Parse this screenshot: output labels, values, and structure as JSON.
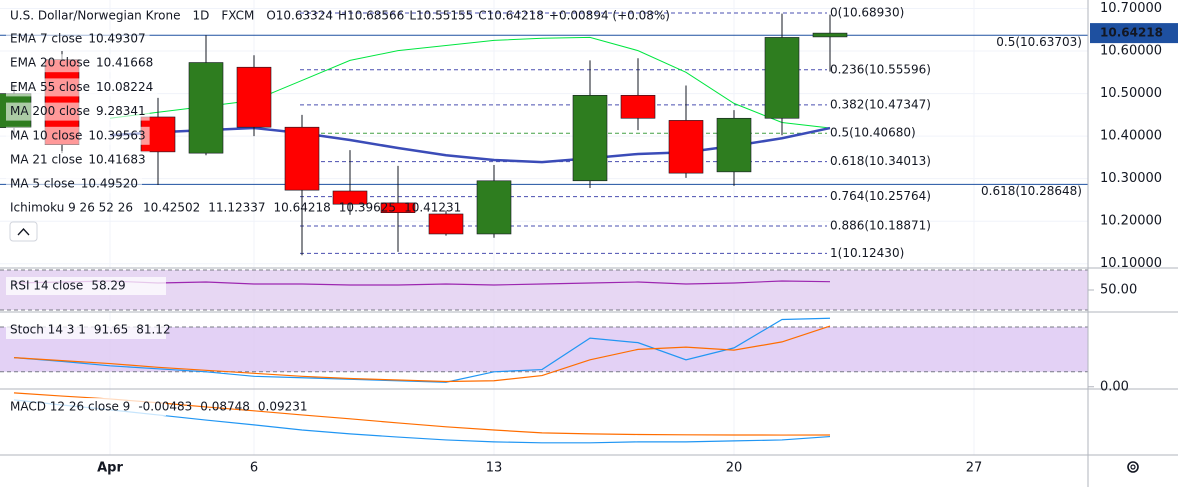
{
  "header": {
    "title": "U.S. Dollar/Norwegian Krone",
    "interval": "1D",
    "source": "FXCM",
    "ohlc": [
      "O10.63324",
      "H10.68566",
      "L10.55155",
      "C10.64218",
      "+0.00894 (+0.08%)"
    ]
  },
  "legend": [
    {
      "name": "EMA 7 close",
      "value": "10.49307",
      "color": "#2962ff"
    },
    {
      "name": "EMA 20 close",
      "value": "10.41668",
      "color": "#2962ff"
    },
    {
      "name": "EMA 55 close",
      "value": "10.08224",
      "color": "#ff9800"
    },
    {
      "name": "MA 200 close",
      "value": "9.28341",
      "color": "#e53935"
    },
    {
      "name": "MA 10 close",
      "value": "10.39563",
      "color": "#43a047"
    },
    {
      "name": "MA 21 close",
      "value": "10.41683",
      "color": "#4caf50"
    },
    {
      "name": "MA 5 close",
      "value": "10.49520",
      "color": "#2962ff"
    }
  ],
  "ichimoku": {
    "name": "Ichimoku 9 26 52 26",
    "values": [
      {
        "value": "10.42502",
        "color": "#2962ff"
      },
      {
        "value": "11.12337",
        "color": "#880e4f"
      },
      {
        "value": "10.64218",
        "color": "#43a047"
      },
      {
        "value": "10.39625",
        "color": "#ef9a9a"
      },
      {
        "value": "10.41231",
        "color": "#e53935"
      }
    ]
  },
  "chart_data": [
    {
      "type": "candlestick",
      "categories": [
        null,
        null,
        "Apr",
        null,
        null,
        "6",
        null,
        null,
        null,
        null,
        "13",
        null,
        null,
        null,
        null,
        "20",
        null,
        null,
        null,
        null,
        "27",
        null
      ],
      "open": [
        10.42,
        10.58,
        null,
        10.445,
        10.36,
        10.562,
        10.421,
        10.271,
        10.243,
        10.217,
        10.17,
        null,
        10.295,
        10.496,
        10.437,
        10.316,
        10.442,
        10.63324,
        null,
        null,
        null,
        null
      ],
      "high": [
        10.52,
        10.6,
        null,
        10.49,
        10.637,
        10.59,
        10.45,
        10.367,
        10.33,
        10.225,
        10.332,
        null,
        10.578,
        10.583,
        10.519,
        10.461,
        10.688,
        10.68566,
        null,
        null,
        null,
        null
      ],
      "low": [
        10.4,
        10.36,
        null,
        10.285,
        10.355,
        10.4,
        10.12,
        10.215,
        10.128,
        10.166,
        10.161,
        null,
        10.278,
        10.414,
        10.302,
        10.283,
        10.402,
        10.55155,
        null,
        null,
        null,
        null
      ],
      "close": [
        10.5,
        10.38,
        null,
        10.363,
        10.573,
        10.421,
        10.273,
        10.24,
        10.22,
        10.17,
        10.295,
        null,
        10.496,
        10.442,
        10.313,
        10.442,
        10.632,
        10.64218,
        null,
        null,
        null,
        null
      ],
      "up_color": "#2e7d1f",
      "down_color": "#ff0000",
      "lines": [
        {
          "color": "#00e640",
          "width": 1,
          "values": [
            null,
            null,
            10.442,
            10.456,
            10.47,
            10.484,
            10.531,
            10.578,
            10.601,
            10.613,
            10.625,
            10.63,
            10.632,
            10.601,
            10.55,
            10.477,
            10.432,
            10.419,
            null,
            null,
            null,
            null
          ]
        },
        {
          "color": "#3b4cb8",
          "width": 2.5,
          "values": [
            null,
            null,
            10.402,
            10.409,
            10.414,
            10.419,
            10.407,
            10.391,
            10.372,
            10.355,
            10.344,
            10.339,
            10.348,
            10.358,
            10.362,
            10.377,
            10.395,
            10.419,
            null,
            null,
            null,
            null
          ]
        }
      ],
      "fib_levels": [
        {
          "label": "0(10.68930)",
          "value": 10.6893,
          "color": "#4a4fb0"
        },
        {
          "label": "0.236(10.55596)",
          "value": 10.55596,
          "color": "#4a4fb0"
        },
        {
          "label": "0.382(10.47347)",
          "value": 10.47347,
          "color": "#4a4fb0"
        },
        {
          "label": "0.5(10.40680)",
          "value": 10.4068,
          "color": "#43a047"
        },
        {
          "label": "0.618(10.34013)",
          "value": 10.34013,
          "color": "#4a4fb0"
        },
        {
          "label": "0.764(10.25764)",
          "value": 10.25764,
          "color": "#4a4fb0"
        },
        {
          "label": "0.886(10.18871)",
          "value": 10.18871,
          "color": "#4a4fb0"
        },
        {
          "label": "1(10.12430)",
          "value": 10.1243,
          "color": "#4a4fb0"
        }
      ],
      "levels": [
        {
          "label": "0.5(10.63703)",
          "value": 10.63703,
          "color": "#1e50a0"
        },
        {
          "label": "0.618(10.28648)",
          "value": 10.28648,
          "color": "#1e50a0"
        }
      ],
      "last": {
        "value": 10.64218,
        "label": "10.64218"
      },
      "ylim": [
        10.09,
        10.72
      ],
      "yticks": [
        {
          "value": 10.1,
          "label": "10.10000"
        },
        {
          "value": 10.2,
          "label": "10.20000"
        },
        {
          "value": 10.3,
          "label": "10.30000"
        },
        {
          "value": 10.4,
          "label": "10.40000"
        },
        {
          "value": 10.5,
          "label": "10.50000"
        },
        {
          "value": 10.6,
          "label": "10.60000"
        },
        {
          "value": 10.7,
          "label": "10.70000"
        }
      ],
      "grid": true
    },
    {
      "type": "line",
      "title": "RSI 14 close",
      "value_texts": [
        "58.29"
      ],
      "series": [
        {
          "color": "#9c27b0",
          "values": [
            57,
            58,
            59,
            57,
            58,
            56,
            56,
            55,
            55,
            56,
            55,
            56,
            57,
            58,
            56,
            57,
            59,
            58.29
          ]
        }
      ],
      "bands": [
        70,
        30
      ],
      "band_color": "#e1cdf0",
      "ylim": [
        28,
        72
      ],
      "yticks": [
        {
          "value": 50,
          "label": "50.00"
        }
      ]
    },
    {
      "type": "line",
      "title": "Stoch 14 3 1",
      "value_texts": [
        "91.65",
        "81.12"
      ],
      "series": [
        {
          "color": "#2196f3",
          "values": [
            39,
            34,
            28,
            24,
            20,
            14,
            12,
            10,
            8,
            6,
            20,
            23,
            65,
            59,
            36,
            52,
            90,
            91.65
          ]
        },
        {
          "color": "#ff6d00",
          "values": [
            39,
            35,
            31,
            26,
            22,
            18,
            14,
            11,
            9,
            7,
            8,
            15,
            36,
            50,
            53,
            49,
            60,
            81.12
          ]
        }
      ],
      "bands": [
        80,
        20
      ],
      "band_color": "#dcc6f3",
      "ylim": [
        -3,
        100
      ],
      "yticks": [
        {
          "value": 0,
          "label": "0.00"
        }
      ]
    },
    {
      "type": "line",
      "title": "MACD 12 26 close 9",
      "value_texts": [
        "-0.00483",
        "0.08748",
        "0.09231"
      ],
      "series": [
        {
          "color": "#2196f3",
          "values": [
            0.202,
            0.186,
            0.171,
            0.155,
            0.139,
            0.124,
            0.108,
            0.096,
            0.086,
            0.077,
            0.071,
            0.068,
            0.068,
            0.071,
            0.071,
            0.074,
            0.077,
            0.08748
          ]
        },
        {
          "color": "#ff6d00",
          "values": [
            0.224,
            0.214,
            0.205,
            0.193,
            0.18,
            0.168,
            0.155,
            0.143,
            0.13,
            0.118,
            0.108,
            0.099,
            0.096,
            0.094,
            0.093,
            0.0925,
            0.0923,
            0.09231
          ]
        }
      ],
      "ylim": [
        0.03,
        0.236
      ],
      "yticks": []
    }
  ]
}
